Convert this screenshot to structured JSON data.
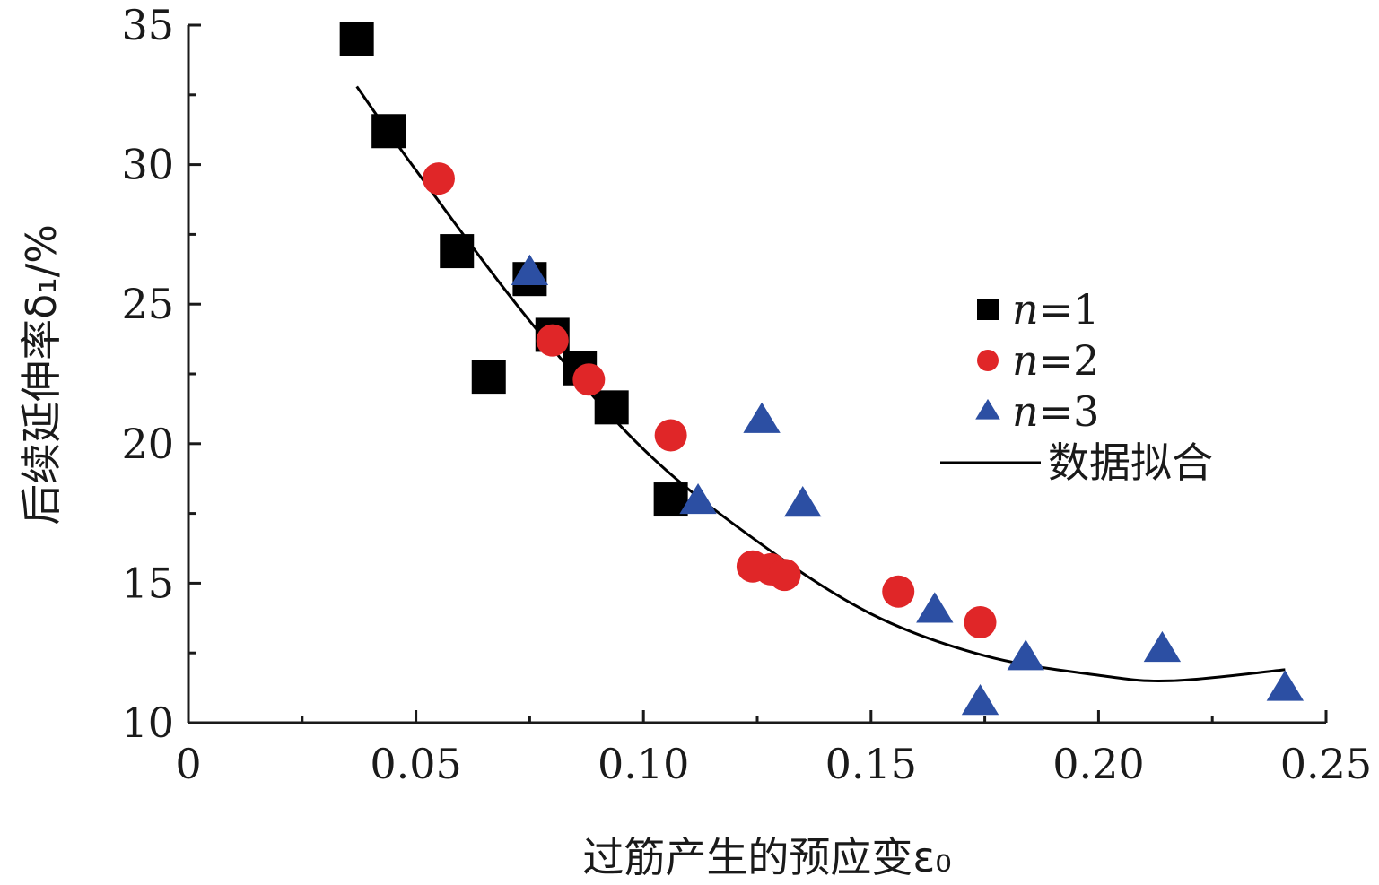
{
  "chart_data": {
    "type": "scatter",
    "xlabel": "过筋产生的预应变ε₀",
    "ylabel": "后续延伸率δ₁/%",
    "xlim": [
      0,
      0.25
    ],
    "ylim": [
      10,
      35
    ],
    "x_ticks": [
      "0",
      "0.05",
      "0.10",
      "0.15",
      "0.20",
      "0.25"
    ],
    "x_tick_values": [
      0,
      0.05,
      0.1,
      0.15,
      0.2,
      0.25
    ],
    "y_ticks": [
      "10",
      "15",
      "20",
      "25",
      "30",
      "35"
    ],
    "y_tick_values": [
      10,
      15,
      20,
      25,
      30,
      35
    ],
    "grid": false,
    "legend_position": "right",
    "series": [
      {
        "name": "n=1",
        "legend_var": "n",
        "legend_eq": "=1",
        "marker": "square",
        "color": "#000000",
        "x": [
          0.037,
          0.044,
          0.059,
          0.066,
          0.075,
          0.08,
          0.086,
          0.093,
          0.106
        ],
        "y": [
          34.5,
          31.2,
          26.9,
          22.4,
          25.9,
          23.9,
          22.7,
          21.3,
          18.0
        ]
      },
      {
        "name": "n=2",
        "legend_var": "n",
        "legend_eq": "=2",
        "marker": "circle",
        "color": "#e02628",
        "x": [
          0.055,
          0.08,
          0.088,
          0.106,
          0.124,
          0.128,
          0.131,
          0.156,
          0.174
        ],
        "y": [
          29.5,
          23.7,
          22.3,
          20.3,
          15.6,
          15.5,
          15.3,
          14.7,
          13.6
        ]
      },
      {
        "name": "n=3",
        "legend_var": "n",
        "legend_eq": "=3",
        "marker": "triangle",
        "color": "#2c4fa3",
        "x": [
          0.075,
          0.112,
          0.126,
          0.135,
          0.164,
          0.174,
          0.184,
          0.214,
          0.241
        ],
        "y": [
          26.1,
          17.9,
          20.8,
          17.8,
          14.0,
          10.7,
          12.3,
          12.6,
          11.2
        ]
      }
    ],
    "fit": {
      "name": "数据拟合",
      "color": "#000000",
      "type": "quadratic",
      "x_range": [
        0.037,
        0.241
      ],
      "x": [
        0.037,
        0.05,
        0.075,
        0.1,
        0.125,
        0.15,
        0.175,
        0.2,
        0.216,
        0.241
      ],
      "y": [
        32.8,
        29.8,
        24.4,
        19.8,
        16.5,
        13.9,
        12.4,
        11.7,
        11.5,
        11.9
      ]
    }
  }
}
